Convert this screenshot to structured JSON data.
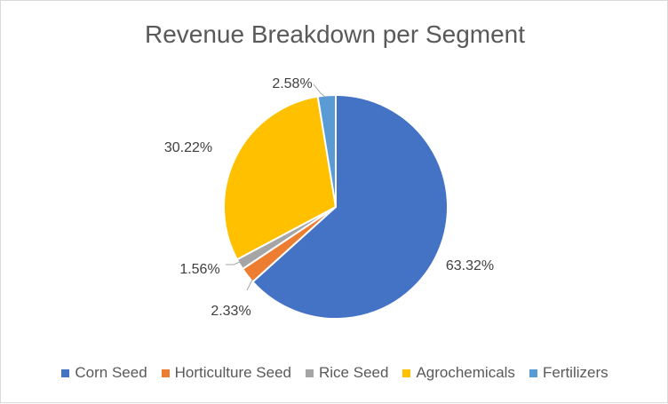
{
  "chart_data": {
    "type": "pie",
    "title": "Revenue Breakdown per Segment",
    "categories": [
      "Corn Seed",
      "Horticulture Seed",
      "Rice Seed",
      "Agrochemicals",
      "Fertilizers"
    ],
    "values": [
      63.32,
      2.33,
      1.56,
      30.22,
      2.58
    ],
    "data_labels": [
      "63.32%",
      "2.33%",
      "1.56%",
      "30.22%",
      "2.58%"
    ],
    "colors": [
      "#4472C4",
      "#ED7D31",
      "#A5A5A5",
      "#FFC000",
      "#5B9BD5"
    ],
    "legend_position": "bottom",
    "start_angle_deg": 0,
    "direction": "clockwise"
  }
}
